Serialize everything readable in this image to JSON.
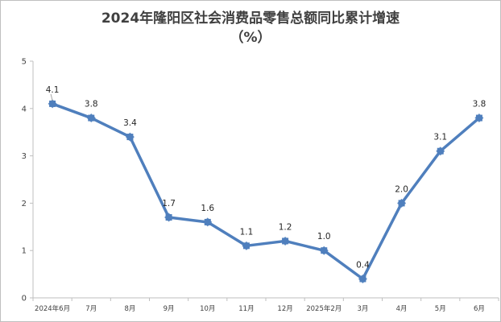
{
  "chart_data": {
    "type": "line",
    "title": "2024年隆阳区社会消费品零售总额同比累计增速",
    "subtitle": "（%）",
    "categories": [
      "2024年6月",
      "7月",
      "8月",
      "9月",
      "10月",
      "11月",
      "12月",
      "2025年2月",
      "3月",
      "4月",
      "5月",
      "6月"
    ],
    "series": [
      {
        "values": [
          4.1,
          3.8,
          3.4,
          1.7,
          1.6,
          1.1,
          1.2,
          1.0,
          0.4,
          2.0,
          3.1,
          3.8
        ],
        "color": "#4f7fbd"
      }
    ],
    "ylim": [
      0,
      5
    ],
    "yticks": [
      "0",
      "1",
      "2",
      "3",
      "4",
      "5"
    ],
    "data_labels": [
      "4.1",
      "3.8",
      "3.4",
      "1.7",
      "1.6",
      "1.1",
      "1.2",
      "1.0",
      "0.4",
      "2.0",
      "3.1",
      "3.8"
    ],
    "grid": false,
    "legend": "none",
    "xlabel": "",
    "ylabel": ""
  }
}
